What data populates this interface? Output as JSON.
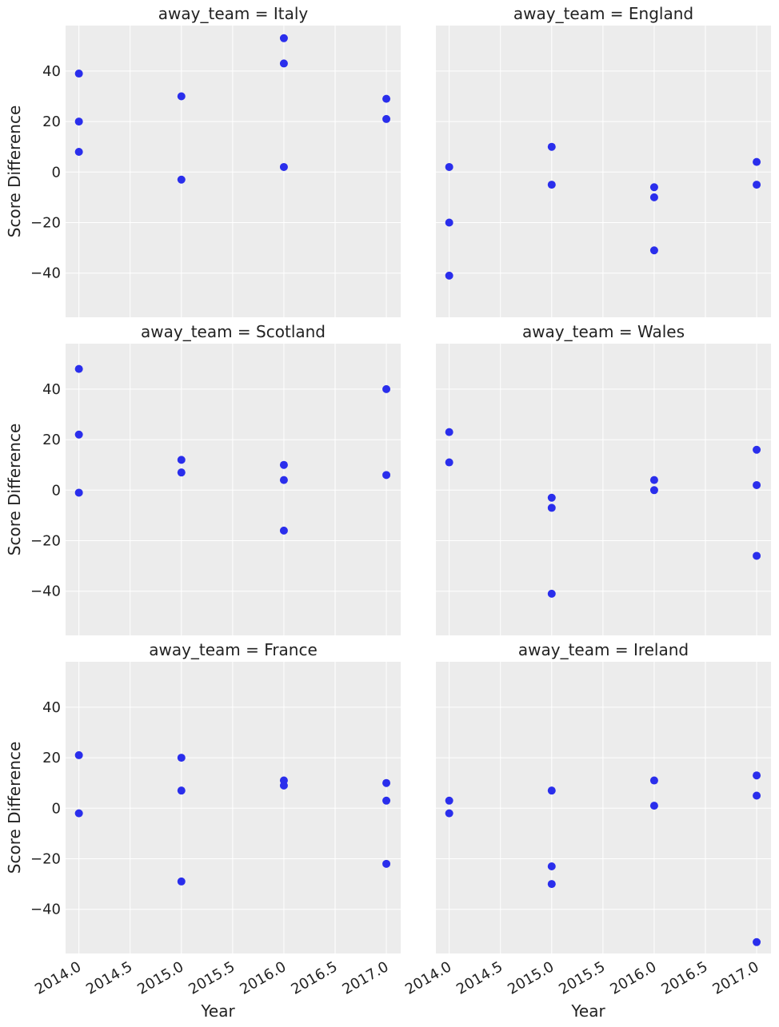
{
  "chart_data": {
    "type": "scatter",
    "xlabel": "Year",
    "ylabel": "Score Difference",
    "xlim": [
      2013.87,
      2017.14
    ],
    "ylim": [
      -57.5,
      58
    ],
    "xticks": [
      2014.0,
      2014.5,
      2015.0,
      2015.5,
      2016.0,
      2016.5,
      2017.0
    ],
    "xtick_labels": [
      "2014.0",
      "2014.5",
      "2015.0",
      "2015.5",
      "2016.0",
      "2016.5",
      "2017.0"
    ],
    "yticks": [
      -40,
      -20,
      0,
      20,
      40
    ],
    "ytick_labels": [
      "−40",
      "−20",
      "0",
      "20",
      "40"
    ],
    "color": "#2a2eec",
    "panels": [
      {
        "title": "away_team = Italy",
        "x": [
          2014,
          2014,
          2014,
          2015,
          2015,
          2016,
          2016,
          2016,
          2017,
          2017
        ],
        "y": [
          39,
          20,
          8,
          30,
          -3,
          53,
          43,
          2,
          29,
          21
        ]
      },
      {
        "title": "away_team = England",
        "x": [
          2014,
          2014,
          2014,
          2015,
          2015,
          2016,
          2016,
          2016,
          2017,
          2017
        ],
        "y": [
          2,
          -20,
          -41,
          10,
          -5,
          -6,
          -10,
          -31,
          4,
          -5
        ]
      },
      {
        "title": "away_team = Scotland",
        "x": [
          2014,
          2014,
          2014,
          2015,
          2015,
          2016,
          2016,
          2016,
          2017,
          2017
        ],
        "y": [
          48,
          22,
          -1,
          12,
          7,
          10,
          4,
          -16,
          40,
          6
        ]
      },
      {
        "title": "away_team = Wales",
        "x": [
          2014,
          2014,
          2015,
          2015,
          2015,
          2016,
          2016,
          2017,
          2017,
          2017
        ],
        "y": [
          23,
          11,
          -3,
          -7,
          -41,
          4,
          0,
          16,
          2,
          -26
        ]
      },
      {
        "title": "away_team = France",
        "x": [
          2014,
          2014,
          2015,
          2015,
          2015,
          2016,
          2016,
          2017,
          2017,
          2017
        ],
        "y": [
          21,
          -2,
          20,
          7,
          -29,
          11,
          9,
          10,
          3,
          -22
        ]
      },
      {
        "title": "away_team = Ireland",
        "x": [
          2014,
          2014,
          2015,
          2015,
          2015,
          2016,
          2016,
          2017,
          2017,
          2017
        ],
        "y": [
          3,
          -2,
          7,
          -23,
          -30,
          11,
          1,
          13,
          5,
          -53
        ]
      }
    ]
  }
}
